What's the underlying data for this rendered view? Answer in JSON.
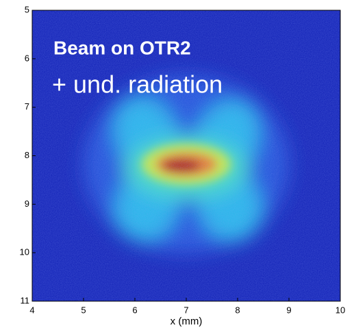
{
  "chart_data": {
    "type": "heatmap",
    "xlabel": "x (mm)",
    "xlim": [
      4,
      10
    ],
    "xticks": [
      4,
      5,
      6,
      7,
      8,
      9,
      10
    ],
    "ylim": [
      11,
      5
    ],
    "yticks": [
      5,
      6,
      7,
      8,
      9,
      10,
      11
    ],
    "annotations": [
      "Beam on OTR2",
      "+ und. radiation"
    ]
  }
}
